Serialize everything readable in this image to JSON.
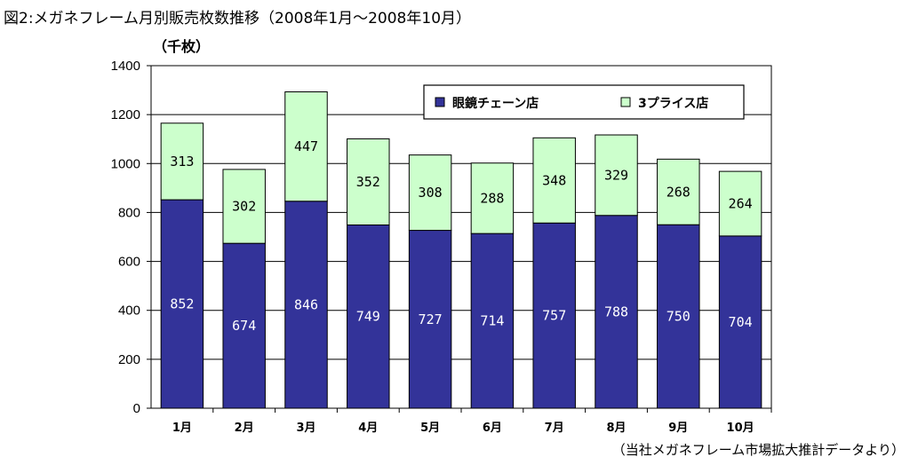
{
  "title": "図2:メガネフレーム月別販売枚数推移（2008年1月〜2008年10月）",
  "source": "（当社メガネフレーム市場拡大推計データより）",
  "chart_data": {
    "type": "bar",
    "stacked": true,
    "unit_label": "（千枚）",
    "categories": [
      "1月",
      "2月",
      "3月",
      "4月",
      "5月",
      "6月",
      "7月",
      "8月",
      "9月",
      "10月"
    ],
    "series": [
      {
        "name": "眼鏡チェーン店",
        "color": "#333399",
        "label_color": "#ffffff",
        "values": [
          852,
          674,
          846,
          749,
          727,
          714,
          757,
          788,
          750,
          704
        ]
      },
      {
        "name": "3プライス店",
        "color": "#ccffcc",
        "label_color": "#000000",
        "values": [
          313,
          302,
          447,
          352,
          308,
          288,
          348,
          329,
          268,
          264
        ]
      }
    ],
    "ylim": [
      0,
      1400
    ],
    "yticks": [
      0,
      200,
      400,
      600,
      800,
      1000,
      1200,
      1400
    ],
    "grid": true,
    "legend_position": "top-right"
  }
}
